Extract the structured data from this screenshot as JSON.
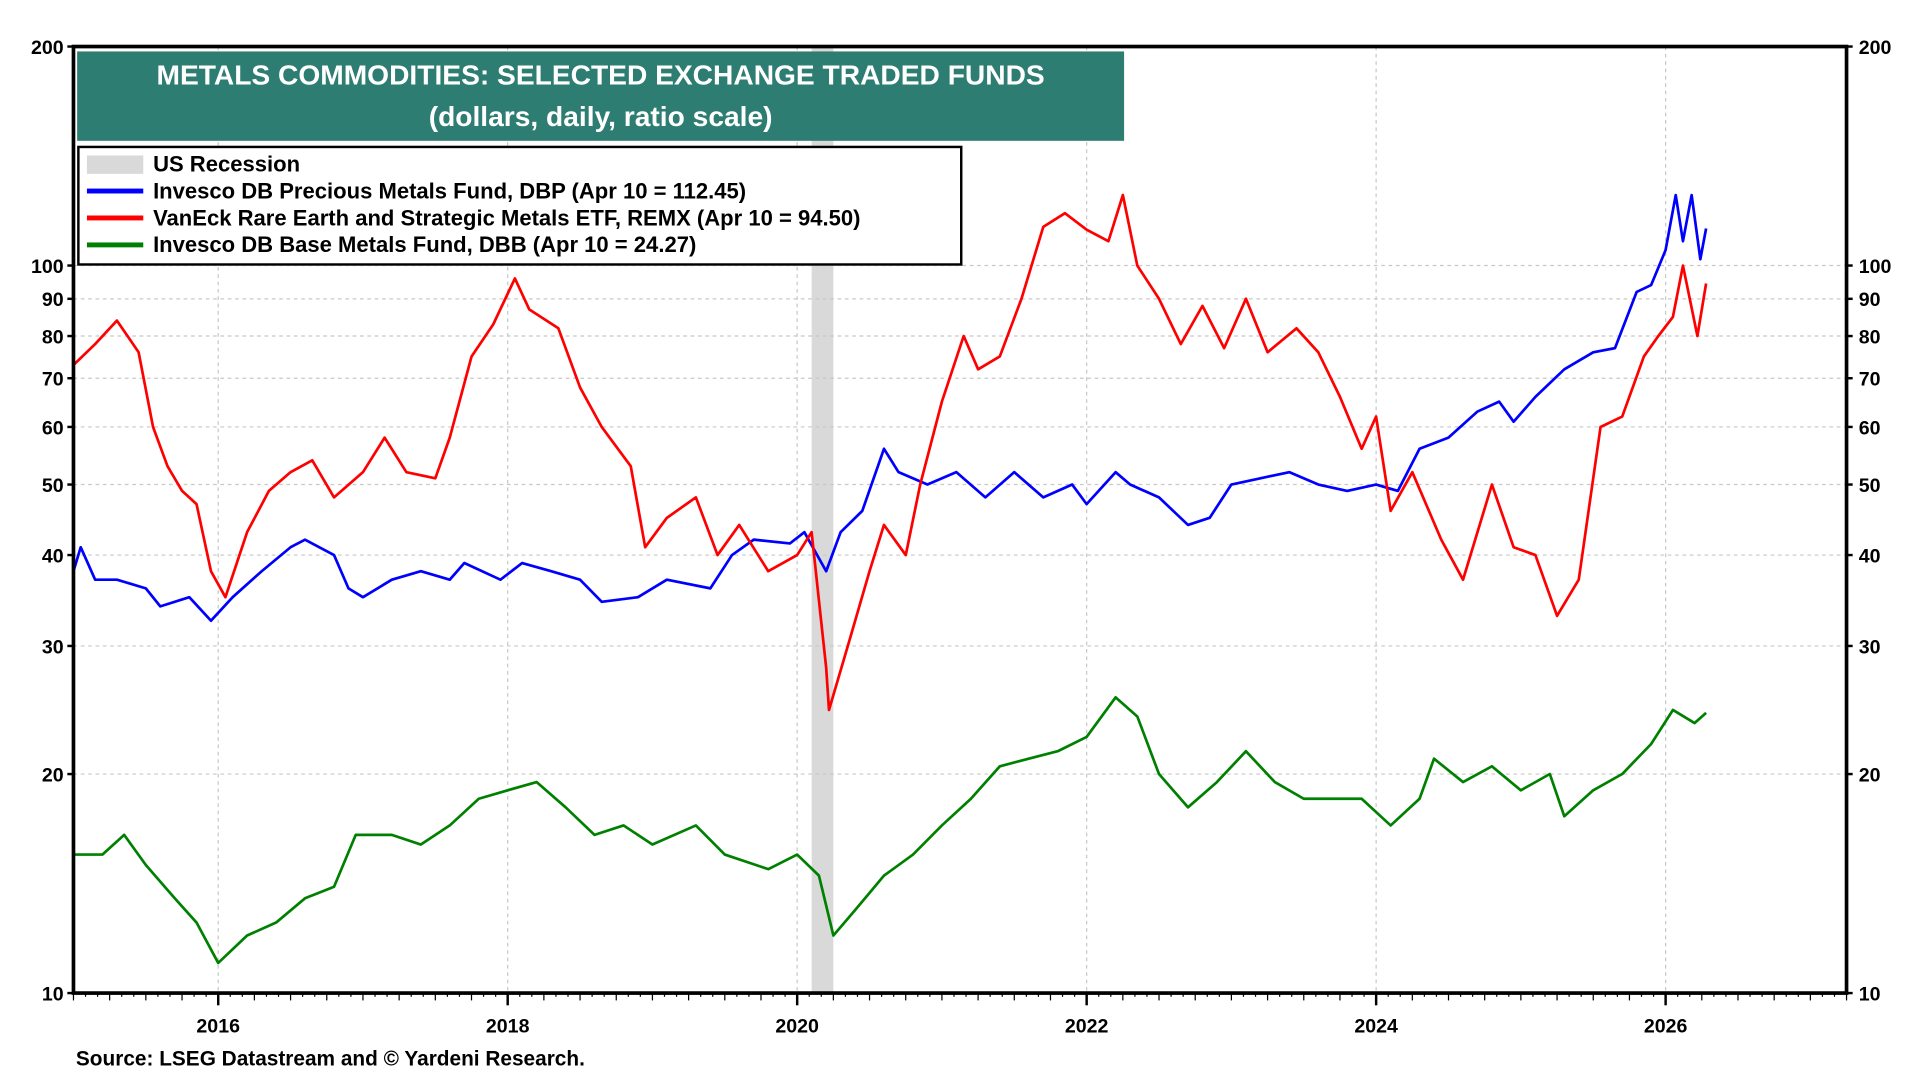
{
  "chart_data": {
    "type": "line",
    "title": "METALS COMMODITIES: SELECTED EXCHANGE TRADED FUNDS",
    "subtitle": "(dollars, daily, ratio scale)",
    "source": "Source: LSEG Datastream and © Yardeni Research.",
    "y_scale": "log",
    "ylim": [
      10,
      200
    ],
    "xlim": [
      2015.0,
      2027.25
    ],
    "y_ticks": [
      "200",
      "100",
      "90",
      "80",
      "70",
      "60",
      "50",
      "40",
      "30",
      "20",
      "10"
    ],
    "y_tick_values": [
      200,
      100,
      90,
      80,
      70,
      60,
      50,
      40,
      30,
      20,
      10
    ],
    "x_ticks": [
      "2016",
      "2018",
      "2020",
      "2022",
      "2024",
      "2026"
    ],
    "x_tick_values": [
      2016,
      2018,
      2020,
      2022,
      2024,
      2026
    ],
    "grid": true,
    "legend_position": "top-left",
    "recession": {
      "label": "US Recession",
      "start": 2020.1,
      "end": 2020.25,
      "color": "#d9d9d9"
    },
    "series": [
      {
        "name": "Invesco DB Precious Metals Fund, DBP (Apr 10 = 112.45)",
        "color": "#0000ff",
        "points": [
          [
            2015.0,
            38
          ],
          [
            2015.05,
            41
          ],
          [
            2015.15,
            37
          ],
          [
            2015.3,
            37
          ],
          [
            2015.5,
            36
          ],
          [
            2015.6,
            34
          ],
          [
            2015.8,
            35
          ],
          [
            2015.95,
            32.5
          ],
          [
            2016.1,
            35
          ],
          [
            2016.3,
            38
          ],
          [
            2016.5,
            41
          ],
          [
            2016.6,
            42
          ],
          [
            2016.8,
            40
          ],
          [
            2016.9,
            36
          ],
          [
            2017.0,
            35
          ],
          [
            2017.2,
            37
          ],
          [
            2017.4,
            38
          ],
          [
            2017.6,
            37
          ],
          [
            2017.7,
            39
          ],
          [
            2017.95,
            37
          ],
          [
            2018.1,
            39
          ],
          [
            2018.3,
            38
          ],
          [
            2018.5,
            37
          ],
          [
            2018.65,
            34.5
          ],
          [
            2018.9,
            35
          ],
          [
            2019.1,
            37
          ],
          [
            2019.4,
            36
          ],
          [
            2019.55,
            40
          ],
          [
            2019.7,
            42
          ],
          [
            2019.95,
            41.5
          ],
          [
            2020.05,
            43
          ],
          [
            2020.2,
            38
          ],
          [
            2020.3,
            43
          ],
          [
            2020.45,
            46
          ],
          [
            2020.6,
            56
          ],
          [
            2020.7,
            52
          ],
          [
            2020.9,
            50
          ],
          [
            2021.1,
            52
          ],
          [
            2021.3,
            48
          ],
          [
            2021.5,
            52
          ],
          [
            2021.7,
            48
          ],
          [
            2021.9,
            50
          ],
          [
            2022.0,
            47
          ],
          [
            2022.2,
            52
          ],
          [
            2022.3,
            50
          ],
          [
            2022.5,
            48
          ],
          [
            2022.7,
            44
          ],
          [
            2022.85,
            45
          ],
          [
            2023.0,
            50
          ],
          [
            2023.2,
            51
          ],
          [
            2023.4,
            52
          ],
          [
            2023.6,
            50
          ],
          [
            2023.8,
            49
          ],
          [
            2024.0,
            50
          ],
          [
            2024.15,
            49
          ],
          [
            2024.3,
            56
          ],
          [
            2024.5,
            58
          ],
          [
            2024.7,
            63
          ],
          [
            2024.85,
            65
          ],
          [
            2024.95,
            61
          ],
          [
            2025.1,
            66
          ],
          [
            2025.3,
            72
          ],
          [
            2025.5,
            76
          ],
          [
            2025.65,
            77
          ],
          [
            2025.8,
            92
          ],
          [
            2025.9,
            94
          ],
          [
            2026.0,
            105
          ],
          [
            2026.07,
            125
          ],
          [
            2026.12,
            108
          ],
          [
            2026.18,
            125
          ],
          [
            2026.24,
            102
          ],
          [
            2026.28,
            112.45
          ]
        ]
      },
      {
        "name": "VanEck Rare Earth and Strategic Metals ETF, REMX (Apr 10 = 94.50)",
        "color": "#ff0000",
        "points": [
          [
            2015.0,
            73
          ],
          [
            2015.15,
            78
          ],
          [
            2015.3,
            84
          ],
          [
            2015.45,
            76
          ],
          [
            2015.55,
            60
          ],
          [
            2015.65,
            53
          ],
          [
            2015.75,
            49
          ],
          [
            2015.85,
            47
          ],
          [
            2015.95,
            38
          ],
          [
            2016.05,
            35
          ],
          [
            2016.2,
            43
          ],
          [
            2016.35,
            49
          ],
          [
            2016.5,
            52
          ],
          [
            2016.65,
            54
          ],
          [
            2016.8,
            48
          ],
          [
            2017.0,
            52
          ],
          [
            2017.15,
            58
          ],
          [
            2017.3,
            52
          ],
          [
            2017.5,
            51
          ],
          [
            2017.6,
            58
          ],
          [
            2017.75,
            75
          ],
          [
            2017.9,
            83
          ],
          [
            2018.05,
            96
          ],
          [
            2018.15,
            87
          ],
          [
            2018.35,
            82
          ],
          [
            2018.5,
            68
          ],
          [
            2018.65,
            60
          ],
          [
            2018.85,
            53
          ],
          [
            2018.95,
            41
          ],
          [
            2019.1,
            45
          ],
          [
            2019.3,
            48
          ],
          [
            2019.45,
            40
          ],
          [
            2019.6,
            44
          ],
          [
            2019.8,
            38
          ],
          [
            2020.0,
            40
          ],
          [
            2020.1,
            43
          ],
          [
            2020.2,
            28
          ],
          [
            2020.22,
            24.5
          ],
          [
            2020.35,
            30
          ],
          [
            2020.5,
            38
          ],
          [
            2020.6,
            44
          ],
          [
            2020.75,
            40
          ],
          [
            2020.85,
            50
          ],
          [
            2021.0,
            65
          ],
          [
            2021.15,
            80
          ],
          [
            2021.25,
            72
          ],
          [
            2021.4,
            75
          ],
          [
            2021.55,
            90
          ],
          [
            2021.7,
            113
          ],
          [
            2021.85,
            118
          ],
          [
            2022.0,
            112
          ],
          [
            2022.15,
            108
          ],
          [
            2022.25,
            125
          ],
          [
            2022.35,
            100
          ],
          [
            2022.5,
            90
          ],
          [
            2022.65,
            78
          ],
          [
            2022.8,
            88
          ],
          [
            2022.95,
            77
          ],
          [
            2023.1,
            90
          ],
          [
            2023.25,
            76
          ],
          [
            2023.45,
            82
          ],
          [
            2023.6,
            76
          ],
          [
            2023.75,
            66
          ],
          [
            2023.9,
            56
          ],
          [
            2024.0,
            62
          ],
          [
            2024.1,
            46
          ],
          [
            2024.25,
            52
          ],
          [
            2024.45,
            42
          ],
          [
            2024.6,
            37
          ],
          [
            2024.8,
            50
          ],
          [
            2024.95,
            41
          ],
          [
            2025.1,
            40
          ],
          [
            2025.25,
            33
          ],
          [
            2025.4,
            37
          ],
          [
            2025.55,
            60
          ],
          [
            2025.7,
            62
          ],
          [
            2025.85,
            75
          ],
          [
            2025.95,
            80
          ],
          [
            2026.05,
            85
          ],
          [
            2026.12,
            100
          ],
          [
            2026.22,
            80
          ],
          [
            2026.28,
            94.5
          ]
        ]
      },
      {
        "name": "Invesco DB Base Metals Fund, DBB (Apr 10 = 24.27)",
        "color": "#008000",
        "points": [
          [
            2015.0,
            15.5
          ],
          [
            2015.2,
            15.5
          ],
          [
            2015.35,
            16.5
          ],
          [
            2015.5,
            15
          ],
          [
            2015.7,
            13.5
          ],
          [
            2015.85,
            12.5
          ],
          [
            2016.0,
            11
          ],
          [
            2016.2,
            12
          ],
          [
            2016.4,
            12.5
          ],
          [
            2016.6,
            13.5
          ],
          [
            2016.8,
            14
          ],
          [
            2016.95,
            16.5
          ],
          [
            2017.2,
            16.5
          ],
          [
            2017.4,
            16
          ],
          [
            2017.6,
            17
          ],
          [
            2017.8,
            18.5
          ],
          [
            2018.0,
            19
          ],
          [
            2018.2,
            19.5
          ],
          [
            2018.4,
            18
          ],
          [
            2018.6,
            16.5
          ],
          [
            2018.8,
            17
          ],
          [
            2019.0,
            16
          ],
          [
            2019.3,
            17
          ],
          [
            2019.5,
            15.5
          ],
          [
            2019.8,
            14.8
          ],
          [
            2020.0,
            15.5
          ],
          [
            2020.15,
            14.5
          ],
          [
            2020.25,
            12
          ],
          [
            2020.4,
            13
          ],
          [
            2020.6,
            14.5
          ],
          [
            2020.8,
            15.5
          ],
          [
            2021.0,
            17
          ],
          [
            2021.2,
            18.5
          ],
          [
            2021.4,
            20.5
          ],
          [
            2021.6,
            21
          ],
          [
            2021.8,
            21.5
          ],
          [
            2022.0,
            22.5
          ],
          [
            2022.2,
            25.5
          ],
          [
            2022.35,
            24
          ],
          [
            2022.5,
            20
          ],
          [
            2022.7,
            18
          ],
          [
            2022.9,
            19.5
          ],
          [
            2023.1,
            21.5
          ],
          [
            2023.3,
            19.5
          ],
          [
            2023.5,
            18.5
          ],
          [
            2023.7,
            18.5
          ],
          [
            2023.9,
            18.5
          ],
          [
            2024.1,
            17
          ],
          [
            2024.3,
            18.5
          ],
          [
            2024.4,
            21
          ],
          [
            2024.6,
            19.5
          ],
          [
            2024.8,
            20.5
          ],
          [
            2025.0,
            19
          ],
          [
            2025.2,
            20
          ],
          [
            2025.3,
            17.5
          ],
          [
            2025.5,
            19
          ],
          [
            2025.7,
            20
          ],
          [
            2025.9,
            22
          ],
          [
            2026.05,
            24.5
          ],
          [
            2026.2,
            23.5
          ],
          [
            2026.28,
            24.27
          ]
        ]
      }
    ]
  }
}
